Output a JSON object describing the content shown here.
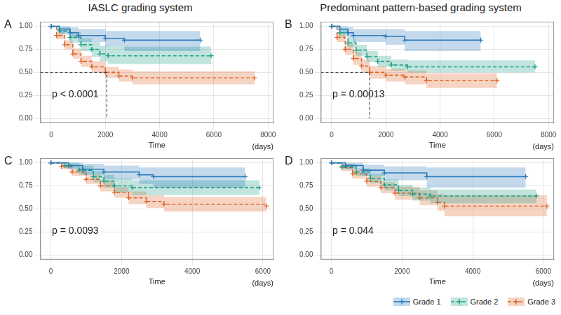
{
  "titles": [
    "IASLC grading system",
    "Predominant pattern-based grading system"
  ],
  "chart_data": [
    {
      "type": "line",
      "panel": "A",
      "annotation": "p < 0.0001",
      "xlabel": "Time",
      "xlabel_unit": "(days)",
      "xlim": [
        -400,
        8200
      ],
      "xticks": [
        0,
        2000,
        4000,
        6000,
        8000
      ],
      "ylim": [
        -0.05,
        1.05
      ],
      "yticks": [
        {
          "value": 0,
          "label": "0.00"
        },
        {
          "value": 0.25,
          "label": "0.25"
        },
        {
          "value": 0.5,
          "label": "0.50"
        },
        {
          "value": 0.75,
          "label": "0.75"
        },
        {
          "value": 1,
          "label": "1.00"
        }
      ],
      "grid": true,
      "median": {
        "x": 2050,
        "y": 0.5
      },
      "series": [
        {
          "name": "Grade 1",
          "color": "#2b7bb9",
          "line_style": "solid",
          "marker": "cross",
          "x": [
            0,
            300,
            700,
            1000,
            2000,
            2700,
            5500
          ],
          "values": [
            1,
            0.97,
            0.93,
            0.9,
            0.87,
            0.85,
            0.85
          ],
          "ci_lower": [
            1,
            0.93,
            0.87,
            0.83,
            0.78,
            0.73,
            0.73
          ],
          "ci_upper": [
            1,
            1,
            0.99,
            0.97,
            0.95,
            0.95,
            0.95
          ]
        },
        {
          "name": "Grade 2",
          "color": "#1fa187",
          "line_style": "dashed",
          "marker": "cross",
          "x": [
            0,
            300,
            700,
            1100,
            1500,
            1800,
            2100,
            5900
          ],
          "values": [
            1,
            0.95,
            0.88,
            0.8,
            0.75,
            0.7,
            0.68,
            0.68
          ],
          "ci_lower": [
            1,
            0.91,
            0.82,
            0.73,
            0.67,
            0.62,
            0.59,
            0.59
          ],
          "ci_upper": [
            1,
            0.99,
            0.94,
            0.87,
            0.83,
            0.79,
            0.78,
            0.78
          ]
        },
        {
          "name": "Grade 3",
          "color": "#e0662a",
          "line_style": "dashed",
          "marker": "cross",
          "x": [
            0,
            200,
            500,
            800,
            1100,
            1500,
            2000,
            2500,
            3000,
            7500
          ],
          "values": [
            1,
            0.9,
            0.8,
            0.7,
            0.62,
            0.56,
            0.5,
            0.46,
            0.44,
            0.44
          ],
          "ci_lower": [
            1,
            0.86,
            0.75,
            0.65,
            0.56,
            0.5,
            0.44,
            0.4,
            0.37,
            0.37
          ],
          "ci_upper": [
            1,
            0.94,
            0.85,
            0.76,
            0.68,
            0.62,
            0.56,
            0.53,
            0.51,
            0.51
          ]
        }
      ]
    },
    {
      "type": "line",
      "panel": "B",
      "annotation": "p = 0.00013",
      "xlabel": "Time",
      "xlabel_unit": "(days)",
      "xlim": [
        -400,
        8200
      ],
      "xticks": [
        0,
        2000,
        4000,
        6000,
        8000
      ],
      "ylim": [
        -0.05,
        1.05
      ],
      "yticks": [
        {
          "value": 0,
          "label": "0.00"
        },
        {
          "value": 0.25,
          "label": "0.25"
        },
        {
          "value": 0.5,
          "label": "0.50"
        },
        {
          "value": 0.75,
          "label": "0.75"
        },
        {
          "value": 1,
          "label": "1.00"
        }
      ],
      "grid": true,
      "median": {
        "x": 1400,
        "y": 0.5
      },
      "series": [
        {
          "name": "Grade 1",
          "color": "#2b7bb9",
          "line_style": "solid",
          "marker": "cross",
          "x": [
            0,
            300,
            600,
            800,
            2000,
            2700,
            5500
          ],
          "values": [
            1,
            0.97,
            0.93,
            0.9,
            0.89,
            0.85,
            0.85
          ],
          "ci_lower": [
            1,
            0.93,
            0.87,
            0.83,
            0.8,
            0.73,
            0.73
          ],
          "ci_upper": [
            1,
            1,
            0.99,
            0.97,
            0.97,
            0.95,
            0.95
          ]
        },
        {
          "name": "Grade 2",
          "color": "#1fa187",
          "line_style": "dashed",
          "marker": "cross",
          "x": [
            0,
            300,
            600,
            900,
            1300,
            1700,
            2200,
            2800,
            7500
          ],
          "values": [
            1,
            0.93,
            0.82,
            0.74,
            0.67,
            0.62,
            0.58,
            0.56,
            0.56
          ],
          "ci_lower": [
            1,
            0.89,
            0.77,
            0.68,
            0.61,
            0.56,
            0.52,
            0.5,
            0.5
          ],
          "ci_upper": [
            1,
            0.97,
            0.87,
            0.8,
            0.73,
            0.68,
            0.64,
            0.63,
            0.63
          ]
        },
        {
          "name": "Grade 3",
          "color": "#e0662a",
          "line_style": "dashed",
          "marker": "cross",
          "x": [
            0,
            200,
            500,
            800,
            1100,
            1400,
            2000,
            2700,
            3500,
            6100
          ],
          "values": [
            1,
            0.88,
            0.75,
            0.65,
            0.57,
            0.5,
            0.47,
            0.45,
            0.41,
            0.41
          ],
          "ci_lower": [
            1,
            0.83,
            0.69,
            0.58,
            0.5,
            0.43,
            0.4,
            0.37,
            0.33,
            0.33
          ],
          "ci_upper": [
            1,
            0.93,
            0.81,
            0.72,
            0.64,
            0.57,
            0.54,
            0.52,
            0.49,
            0.49
          ]
        }
      ]
    },
    {
      "type": "line",
      "panel": "C",
      "annotation": "p = 0.0093",
      "xlabel": "Time",
      "xlabel_unit": "(days)",
      "xlim": [
        -300,
        6300
      ],
      "xticks": [
        0,
        2000,
        4000,
        6000
      ],
      "ylim": [
        -0.05,
        1.05
      ],
      "yticks": [
        {
          "value": 0,
          "label": "0.00"
        },
        {
          "value": 0.25,
          "label": "0.25"
        },
        {
          "value": 0.5,
          "label": "0.50"
        },
        {
          "value": 0.75,
          "label": "0.75"
        },
        {
          "value": 1,
          "label": "1.00"
        }
      ],
      "grid": true,
      "series": [
        {
          "name": "Grade 1",
          "color": "#2b7bb9",
          "line_style": "solid",
          "marker": "cross",
          "x": [
            0,
            500,
            900,
            1500,
            2500,
            2900,
            5500
          ],
          "values": [
            1,
            0.97,
            0.93,
            0.9,
            0.87,
            0.85,
            0.85
          ],
          "ci_lower": [
            1,
            0.93,
            0.87,
            0.82,
            0.77,
            0.73,
            0.73
          ],
          "ci_upper": [
            1,
            1,
            0.99,
            0.97,
            0.95,
            0.95,
            0.95
          ]
        },
        {
          "name": "Grade 2",
          "color": "#1fa187",
          "line_style": "dashed",
          "marker": "cross",
          "x": [
            0,
            400,
            800,
            1200,
            1500,
            1800,
            2300,
            5900
          ],
          "values": [
            1,
            0.97,
            0.92,
            0.85,
            0.8,
            0.75,
            0.73,
            0.73
          ],
          "ci_lower": [
            1,
            0.94,
            0.87,
            0.79,
            0.73,
            0.68,
            0.65,
            0.65
          ],
          "ci_upper": [
            1,
            1,
            0.97,
            0.91,
            0.87,
            0.83,
            0.81,
            0.81
          ]
        },
        {
          "name": "Grade 3",
          "color": "#e0662a",
          "line_style": "dashed",
          "marker": "cross",
          "x": [
            0,
            300,
            600,
            1000,
            1400,
            1800,
            2200,
            2700,
            3200,
            6100
          ],
          "values": [
            1,
            0.96,
            0.9,
            0.82,
            0.75,
            0.68,
            0.62,
            0.58,
            0.55,
            0.53
          ],
          "ci_lower": [
            1,
            0.93,
            0.86,
            0.77,
            0.69,
            0.62,
            0.55,
            0.51,
            0.47,
            0.44
          ],
          "ci_upper": [
            1,
            0.99,
            0.94,
            0.87,
            0.81,
            0.74,
            0.69,
            0.65,
            0.63,
            0.62
          ]
        }
      ]
    },
    {
      "type": "line",
      "panel": "D",
      "annotation": "p = 0.044",
      "xlabel": "Time",
      "xlabel_unit": "(days)",
      "xlim": [
        -300,
        6300
      ],
      "xticks": [
        0,
        2000,
        4000,
        6000
      ],
      "ylim": [
        -0.05,
        1.05
      ],
      "yticks": [
        {
          "value": 0,
          "label": "0.00"
        },
        {
          "value": 0.25,
          "label": "0.25"
        },
        {
          "value": 0.5,
          "label": "0.50"
        },
        {
          "value": 0.75,
          "label": "0.75"
        },
        {
          "value": 1,
          "label": "1.00"
        }
      ],
      "grid": true,
      "legend": "bottom right",
      "series": [
        {
          "name": "Grade 1",
          "color": "#2b7bb9",
          "line_style": "solid",
          "marker": "cross",
          "x": [
            0,
            400,
            900,
            1500,
            2700,
            5500
          ],
          "values": [
            1,
            0.97,
            0.92,
            0.89,
            0.85,
            0.85
          ],
          "ci_lower": [
            1,
            0.93,
            0.86,
            0.81,
            0.73,
            0.73
          ],
          "ci_upper": [
            1,
            1,
            0.98,
            0.96,
            0.95,
            0.95
          ]
        },
        {
          "name": "Grade 2",
          "color": "#1fa187",
          "line_style": "dashed",
          "marker": "cross",
          "x": [
            0,
            300,
            700,
            1100,
            1500,
            1900,
            2300,
            2800,
            5800
          ],
          "values": [
            1,
            0.96,
            0.9,
            0.83,
            0.76,
            0.7,
            0.66,
            0.64,
            0.64
          ],
          "ci_lower": [
            1,
            0.93,
            0.86,
            0.78,
            0.7,
            0.64,
            0.59,
            0.56,
            0.56
          ],
          "ci_upper": [
            1,
            0.99,
            0.94,
            0.88,
            0.82,
            0.76,
            0.73,
            0.71,
            0.71
          ]
        },
        {
          "name": "Grade 3",
          "color": "#e0662a",
          "line_style": "dashed",
          "marker": "cross",
          "x": [
            0,
            300,
            600,
            1000,
            1400,
            1800,
            2500,
            3000,
            3200,
            6100
          ],
          "values": [
            1,
            0.95,
            0.88,
            0.8,
            0.73,
            0.67,
            0.62,
            0.57,
            0.53,
            0.53
          ],
          "ci_lower": [
            1,
            0.91,
            0.83,
            0.74,
            0.67,
            0.6,
            0.54,
            0.48,
            0.42,
            0.42
          ],
          "ci_upper": [
            1,
            0.99,
            0.93,
            0.86,
            0.79,
            0.74,
            0.7,
            0.66,
            0.65,
            0.65
          ]
        }
      ]
    }
  ]
}
